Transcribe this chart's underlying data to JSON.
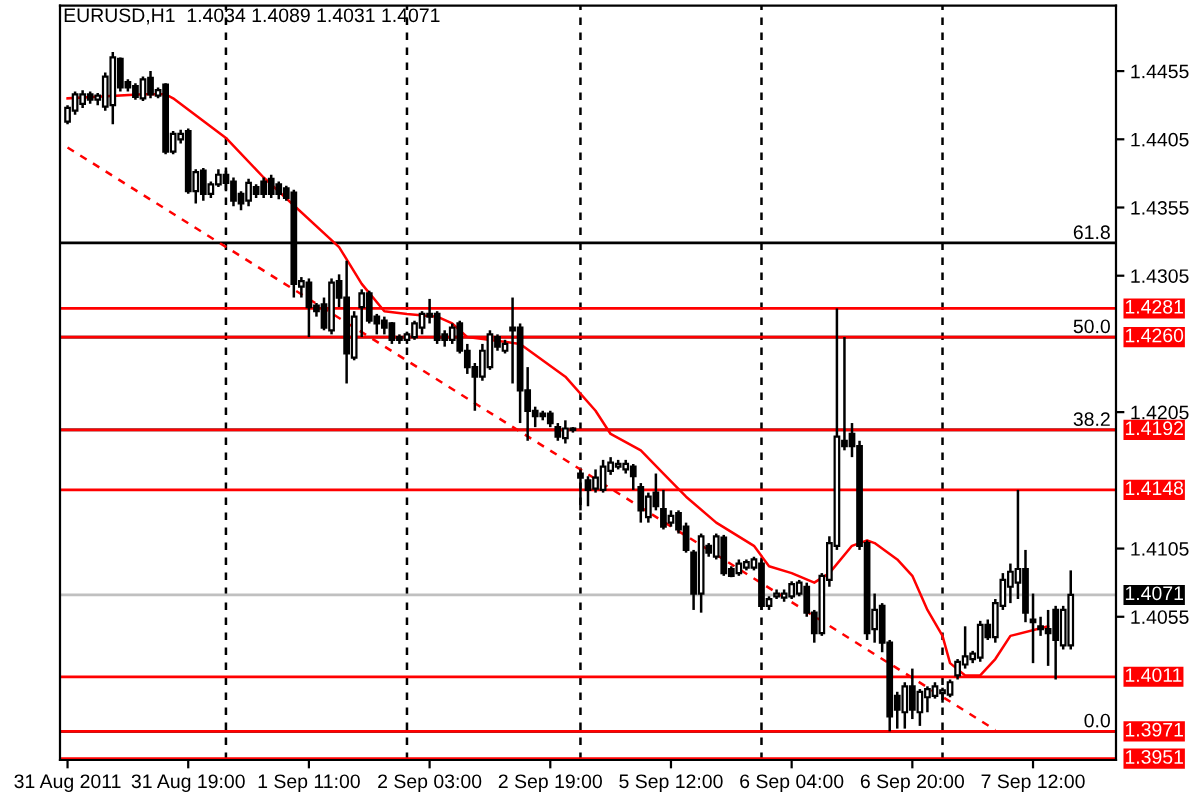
{
  "chart_data": {
    "type": "candlestick",
    "title": "EURUSD,H1  1.4034 1.4089 1.4031 1.4071",
    "color": "#000000",
    "categories": [
      "31 Aug 2011",
      null,
      null,
      null,
      null,
      null,
      null,
      null,
      null,
      null,
      null,
      null,
      null,
      null,
      null,
      null,
      "31 Aug 19:00",
      null,
      null,
      null,
      null,
      null,
      null,
      null,
      null,
      null,
      null,
      null,
      null,
      null,
      null,
      null,
      "1 Sep 11:00",
      null,
      null,
      null,
      null,
      null,
      null,
      null,
      null,
      null,
      null,
      null,
      null,
      null,
      null,
      null,
      "2 Sep 03:00",
      null,
      null,
      null,
      null,
      null,
      null,
      null,
      null,
      null,
      null,
      null,
      null,
      null,
      null,
      null,
      "2 Sep 19:00",
      null,
      null,
      null,
      null,
      null,
      null,
      null,
      null,
      null,
      null,
      null,
      null,
      null,
      null,
      null,
      "5 Sep 12:00",
      null,
      null,
      null,
      null,
      null,
      null,
      null,
      null,
      null,
      null,
      null,
      null,
      null,
      null,
      null,
      "6 Sep 04:00",
      null,
      null,
      null,
      null,
      null,
      null,
      null,
      null,
      null,
      null,
      null,
      null,
      null,
      null,
      null,
      "6 Sep 20:00",
      null,
      null,
      null,
      null,
      null,
      null,
      null,
      null,
      null,
      null,
      null,
      null,
      null,
      null,
      null,
      "7 Sep 12:00",
      null,
      null,
      null,
      null,
      null
    ],
    "ohlc": [
      [
        1.4418,
        1.443,
        1.4416,
        1.4428
      ],
      [
        1.4426,
        1.444,
        1.4423,
        1.4438
      ],
      [
        1.4431,
        1.4441,
        1.4428,
        1.4438
      ],
      [
        1.4438,
        1.444,
        1.4431,
        1.4434
      ],
      [
        1.4434,
        1.4439,
        1.443,
        1.4437
      ],
      [
        1.4429,
        1.4454,
        1.4426,
        1.4451
      ],
      [
        1.443,
        1.4469,
        1.4416,
        1.4465
      ],
      [
        1.4464,
        1.4465,
        1.444,
        1.4443
      ],
      [
        1.4447,
        1.4449,
        1.444,
        1.4443
      ],
      [
        1.4444,
        1.4446,
        1.4434,
        1.4436
      ],
      [
        1.4435,
        1.4451,
        1.4433,
        1.4449
      ],
      [
        1.445,
        1.4455,
        1.4435,
        1.4438
      ],
      [
        1.4437,
        1.4443,
        1.4435,
        1.4441
      ],
      [
        1.4445,
        1.4446,
        1.4394,
        1.4396
      ],
      [
        1.4396,
        1.4411,
        1.4394,
        1.4409
      ],
      [
        1.4405,
        1.4412,
        1.4402,
        1.4409
      ],
      [
        1.4411,
        1.4413,
        1.4365,
        1.4367
      ],
      [
        1.4367,
        1.4383,
        1.4358,
        1.4381
      ],
      [
        1.4382,
        1.4384,
        1.436,
        1.4365
      ],
      [
        1.4365,
        1.4374,
        1.4362,
        1.4372
      ],
      [
        1.4372,
        1.4383,
        1.437,
        1.4379
      ],
      [
        1.4379,
        1.4382,
        1.4367,
        1.4373
      ],
      [
        1.4374,
        1.4377,
        1.4356,
        1.436
      ],
      [
        1.4365,
        1.4367,
        1.4353,
        1.4358
      ],
      [
        1.436,
        1.4376,
        1.4356,
        1.4373
      ],
      [
        1.437,
        1.4372,
        1.4362,
        1.4365
      ],
      [
        1.4374,
        1.4377,
        1.4362,
        1.4365
      ],
      [
        1.4376,
        1.4379,
        1.4362,
        1.4365
      ],
      [
        1.4372,
        1.4374,
        1.4361,
        1.4365
      ],
      [
        1.4369,
        1.4371,
        1.436,
        1.4362
      ],
      [
        1.4366,
        1.4368,
        1.4289,
        1.4299
      ],
      [
        1.4297,
        1.4304,
        1.4289,
        1.4301
      ],
      [
        1.43,
        1.4303,
        1.426,
        1.4282
      ],
      [
        1.4283,
        1.4285,
        1.4275,
        1.4279
      ],
      [
        1.4284,
        1.4289,
        1.4265,
        1.4267
      ],
      [
        1.4265,
        1.4303,
        1.4262,
        1.43
      ],
      [
        1.4301,
        1.4306,
        1.4282,
        1.4289
      ],
      [
        1.4289,
        1.4316,
        1.4226,
        1.4248
      ],
      [
        1.4245,
        1.4279,
        1.4243,
        1.4275
      ],
      [
        1.4282,
        1.4295,
        1.426,
        1.4292
      ],
      [
        1.4292,
        1.4294,
        1.427,
        1.4272
      ],
      [
        1.4275,
        1.4277,
        1.4262,
        1.427
      ],
      [
        1.4272,
        1.4275,
        1.4262,
        1.4267
      ],
      [
        1.427,
        1.4271,
        1.4255,
        1.4258
      ],
      [
        1.426,
        1.4262,
        1.4255,
        1.4258
      ],
      [
        1.4258,
        1.4264,
        1.4255,
        1.4262
      ],
      [
        1.426,
        1.4272,
        1.4258,
        1.427
      ],
      [
        1.4267,
        1.4279,
        1.4262,
        1.4277
      ],
      [
        1.4277,
        1.4288,
        1.427,
        1.4275
      ],
      [
        1.4277,
        1.4279,
        1.4255,
        1.4258
      ],
      [
        1.4262,
        1.4265,
        1.4253,
        1.4258
      ],
      [
        1.4258,
        1.427,
        1.4255,
        1.4267
      ],
      [
        1.427,
        1.4272,
        1.4248,
        1.425
      ],
      [
        1.425,
        1.4255,
        1.4233,
        1.4238
      ],
      [
        1.4238,
        1.4241,
        1.4206,
        1.4231
      ],
      [
        1.4231,
        1.4255,
        1.4228,
        1.425
      ],
      [
        1.4238,
        1.4265,
        1.4236,
        1.4262
      ],
      [
        1.426,
        1.4262,
        1.425,
        1.4253
      ],
      [
        1.425,
        1.4258,
        1.4248,
        1.4255
      ],
      [
        1.4267,
        1.4289,
        1.4226,
        1.4265
      ],
      [
        1.4267,
        1.427,
        1.4197,
        1.4221
      ],
      [
        1.4221,
        1.4238,
        1.4184,
        1.4206
      ],
      [
        1.4206,
        1.4209,
        1.4194,
        1.4202
      ],
      [
        1.4204,
        1.4206,
        1.4199,
        1.4202
      ],
      [
        1.4204,
        1.4206,
        1.4194,
        1.4197
      ],
      [
        1.4194,
        1.4197,
        1.4184,
        1.4187
      ],
      [
        1.4186,
        1.4199,
        1.4182,
        1.4193
      ],
      [
        1.4192,
        1.4194,
        1.419,
        1.4193
      ],
      [
        1.416,
        1.4163,
        1.4133,
        1.4157
      ],
      [
        1.4155,
        1.4158,
        1.4136,
        1.4148
      ],
      [
        1.4149,
        1.4163,
        1.4146,
        1.4157
      ],
      [
        1.4148,
        1.417,
        1.4146,
        1.4165
      ],
      [
        1.4162,
        1.4172,
        1.4159,
        1.4168
      ],
      [
        1.4165,
        1.417,
        1.4163,
        1.4167
      ],
      [
        1.4163,
        1.417,
        1.416,
        1.4167
      ],
      [
        1.4165,
        1.4167,
        1.4148,
        1.4158
      ],
      [
        1.415,
        1.4153,
        1.4124,
        1.4133
      ],
      [
        1.4128,
        1.4146,
        1.4124,
        1.4143
      ],
      [
        1.4146,
        1.416,
        1.4133,
        1.4136
      ],
      [
        1.4134,
        1.4148,
        1.4119,
        1.4121
      ],
      [
        1.4124,
        1.4133,
        1.4121,
        1.4129
      ],
      [
        1.4131,
        1.4133,
        1.4116,
        1.4119
      ],
      [
        1.4121,
        1.4124,
        1.4102,
        1.4104
      ],
      [
        1.4102,
        1.4104,
        1.406,
        1.4072
      ],
      [
        1.4072,
        1.4116,
        1.4058,
        1.4114
      ],
      [
        1.4107,
        1.4109,
        1.4099,
        1.4102
      ],
      [
        1.4099,
        1.4116,
        1.4097,
        1.4114
      ],
      [
        1.4113,
        1.4115,
        1.4085,
        1.4087
      ],
      [
        1.409,
        1.4092,
        1.4084,
        1.4085
      ],
      [
        1.4087,
        1.4097,
        1.4085,
        1.4094
      ],
      [
        1.4091,
        1.4097,
        1.4089,
        1.4095
      ],
      [
        1.4091,
        1.4099,
        1.4089,
        1.4097
      ],
      [
        1.4094,
        1.4097,
        1.406,
        1.4063
      ],
      [
        1.4063,
        1.407,
        1.406,
        1.4068
      ],
      [
        1.407,
        1.4075,
        1.4068,
        1.4072
      ],
      [
        1.4069,
        1.4075,
        1.4066,
        1.4072
      ],
      [
        1.407,
        1.4081,
        1.4068,
        1.4079
      ],
      [
        1.4072,
        1.4082,
        1.407,
        1.408
      ],
      [
        1.4077,
        1.408,
        1.4055,
        1.4058
      ],
      [
        1.4058,
        1.406,
        1.4036,
        1.4043
      ],
      [
        1.4043,
        1.4087,
        1.4041,
        1.4085
      ],
      [
        1.4082,
        1.4114,
        1.4077,
        1.4109
      ],
      [
        1.4107,
        1.4281,
        1.4104,
        1.4187
      ],
      [
        1.4184,
        1.426,
        1.4177,
        1.418
      ],
      [
        1.4189,
        1.4197,
        1.4172,
        1.418
      ],
      [
        1.418,
        1.4184,
        1.4104,
        1.4107
      ],
      [
        1.4109,
        1.4111,
        1.4038,
        1.4043
      ],
      [
        1.4046,
        1.4072,
        1.4036,
        1.406
      ],
      [
        1.4063,
        1.4065,
        1.4029,
        1.4036
      ],
      [
        1.4036,
        1.4038,
        1.3971,
        1.3982
      ],
      [
        1.3997,
        1.4,
        1.3973,
        1.3987
      ],
      [
        1.3985,
        1.4007,
        1.3973,
        1.4004
      ],
      [
        1.4004,
        1.4017,
        1.398,
        1.3987
      ],
      [
        1.3985,
        1.4002,
        1.3975,
        1.4
      ],
      [
        1.3996,
        1.4004,
        1.3985,
        1.4002
      ],
      [
        1.3997,
        1.4007,
        1.3995,
        1.4004
      ],
      [
        1.3999,
        1.4003,
        1.3992,
        1.4001
      ],
      [
        1.3998,
        1.4009,
        1.3996,
        1.4007
      ],
      [
        1.4012,
        1.4024,
        1.4009,
        1.4022
      ],
      [
        1.402,
        1.4048,
        1.4017,
        1.4026
      ],
      [
        1.4024,
        1.403,
        1.4021,
        1.4028
      ],
      [
        1.4025,
        1.4052,
        1.4022,
        1.4049
      ],
      [
        1.4049,
        1.4053,
        1.4038,
        1.404
      ],
      [
        1.404,
        1.4068,
        1.4036,
        1.4065
      ],
      [
        1.4063,
        1.4087,
        1.406,
        1.4082
      ],
      [
        1.4077,
        1.4094,
        1.4065,
        1.4088
      ],
      [
        1.408,
        1.4148,
        1.4068,
        1.409
      ],
      [
        1.409,
        1.4104,
        1.4051,
        1.4058
      ],
      [
        1.4053,
        1.4072,
        1.4021,
        1.4051
      ],
      [
        1.4048,
        1.4055,
        1.4041,
        1.4046
      ],
      [
        1.4046,
        1.406,
        1.4019,
        1.4043
      ],
      [
        1.406,
        1.4063,
        1.4009,
        1.4038
      ],
      [
        1.4034,
        1.4063,
        1.4031,
        1.406
      ],
      [
        1.4034,
        1.4089,
        1.4031,
        1.4071
      ]
    ],
    "series": [
      {
        "type": "line",
        "color": "#ff0000",
        "values": [
          1.4435,
          null,
          null,
          null,
          null,
          null,
          null,
          null,
          null,
          null,
          1.4438,
          null,
          null,
          1.4438,
          1.4435,
          null,
          null,
          null,
          null,
          null,
          null,
          1.4406,
          null,
          null,
          null,
          null,
          1.4377,
          null,
          null,
          null,
          null,
          null,
          null,
          null,
          null,
          null,
          1.4326,
          null,
          null,
          1.4299,
          null,
          null,
          1.4279,
          null,
          null,
          1.4277,
          null,
          null,
          null,
          1.4275,
          null,
          1.427,
          null,
          1.426,
          null,
          null,
          null,
          null,
          null,
          null,
          1.4255,
          null,
          null,
          null,
          null,
          null,
          1.4231,
          null,
          null,
          null,
          1.4206,
          null,
          1.4189,
          null,
          null,
          null,
          1.4177,
          null,
          null,
          1.416,
          null,
          null,
          1.4143,
          null,
          null,
          null,
          1.4124,
          null,
          null,
          null,
          null,
          1.4107,
          null,
          1.4092,
          null,
          null,
          1.4087,
          null,
          null,
          1.408,
          null,
          1.4087,
          null,
          null,
          1.4107,
          null,
          1.4111,
          1.4109,
          null,
          null,
          1.4097,
          null,
          1.4085,
          null,
          1.406,
          null,
          1.4041,
          1.4021,
          null,
          1.4012,
          null,
          1.4012,
          null,
          1.4024,
          null,
          1.4041,
          null,
          null,
          null,
          null,
          1.4048,
          null,
          null,
          null
        ]
      },
      {
        "type": "line",
        "color": "#ff0000",
        "line_style": "dashed",
        "values": [
          1.4399,
          null,
          null,
          null,
          null,
          null,
          null,
          null,
          null,
          null,
          null,
          null,
          null,
          null,
          null,
          null,
          null,
          null,
          null,
          null,
          null,
          null,
          null,
          null,
          null,
          null,
          null,
          null,
          null,
          null,
          null,
          null,
          null,
          null,
          null,
          null,
          null,
          null,
          null,
          null,
          null,
          null,
          null,
          null,
          null,
          null,
          null,
          null,
          null,
          null,
          null,
          null,
          null,
          null,
          null,
          null,
          null,
          null,
          null,
          null,
          null,
          null,
          null,
          null,
          null,
          null,
          null,
          null,
          null,
          null,
          null,
          null,
          null,
          null,
          null,
          null,
          null,
          null,
          null,
          null,
          null,
          null,
          null,
          null,
          null,
          null,
          null,
          null,
          null,
          null,
          null,
          null,
          null,
          null,
          null,
          null,
          null,
          null,
          null,
          null,
          null,
          null,
          null,
          null,
          null,
          null,
          null,
          null,
          null,
          null,
          null,
          null,
          null,
          null,
          null,
          null,
          null,
          null,
          null,
          null,
          null,
          null,
          null,
          1.3972,
          null,
          null,
          null,
          null,
          null,
          null,
          null,
          null,
          null,
          null
        ]
      }
    ],
    "ylim": [
      1.395,
      1.4503
    ],
    "annotations": [
      {
        "text": "61.8",
        "y": 1.4329
      },
      {
        "text": "50.0",
        "y": 1.426
      },
      {
        "text": "38.2",
        "y": 1.4192
      },
      {
        "text": "0.0",
        "y": 1.3971
      }
    ],
    "yticks": [
      1.4455,
      1.4405,
      1.4355,
      1.4305,
      1.4205,
      1.4105,
      1.4055
    ],
    "ref_lines": [
      {
        "axis": "y",
        "value": 1.4329,
        "color": "#000000"
      },
      {
        "axis": "y",
        "value": 1.426,
        "color": "#000000"
      },
      {
        "axis": "y",
        "value": 1.4192,
        "color": "#000000"
      },
      {
        "axis": "y",
        "value": 1.3971,
        "color": "#000000"
      },
      {
        "axis": "y",
        "value": 1.4281,
        "label": "1.4281",
        "color": "#ff0000"
      },
      {
        "axis": "y",
        "value": 1.426,
        "label": "1.4260",
        "color": "#ff0000"
      },
      {
        "axis": "y",
        "value": 1.4192,
        "label": "1.4192",
        "color": "#ff0000"
      },
      {
        "axis": "y",
        "value": 1.4148,
        "label": "1.4148",
        "color": "#ff0000"
      },
      {
        "axis": "y",
        "value": 1.4071,
        "label": "1.4071",
        "color": "#c0c0c0"
      },
      {
        "axis": "y",
        "value": 1.4011,
        "label": "1.4011",
        "color": "#ff0000"
      },
      {
        "axis": "y",
        "value": 1.3971,
        "label": "1.3971",
        "color": "#ff0000"
      },
      {
        "axis": "y",
        "value": 1.3951,
        "label": "1.3951",
        "color": "#ff0000"
      }
    ]
  }
}
